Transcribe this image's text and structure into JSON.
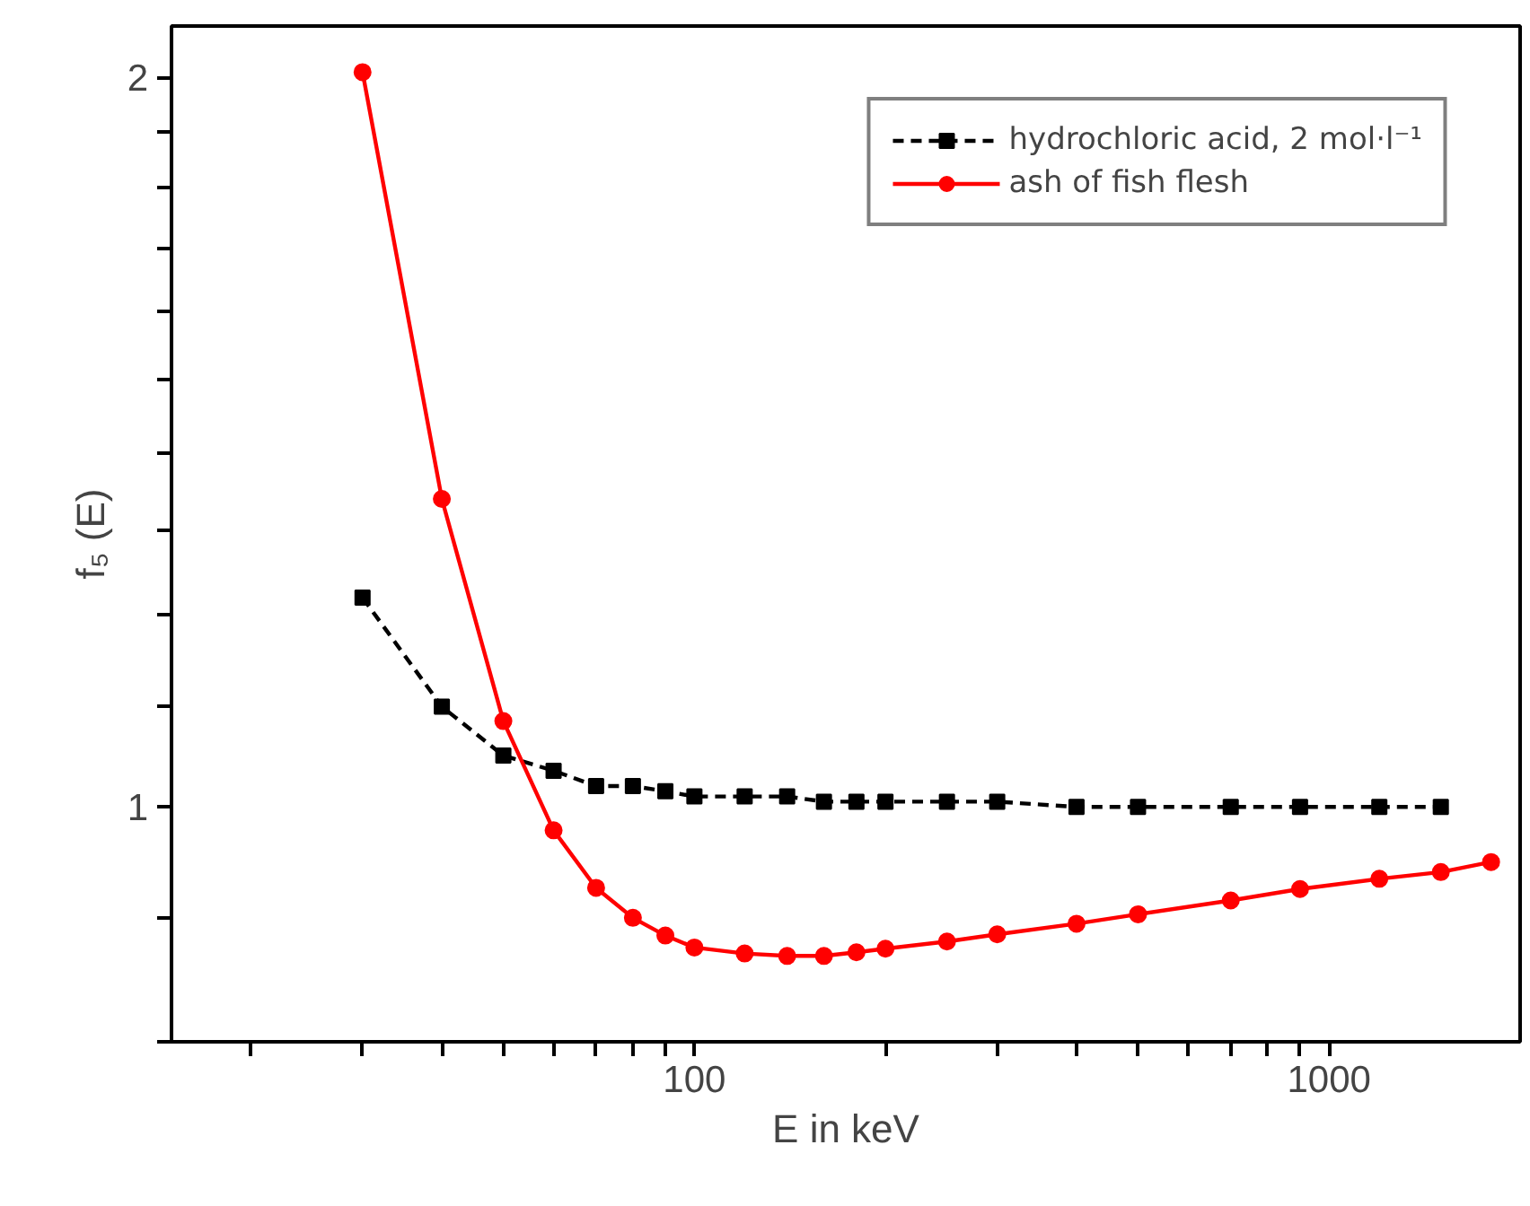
{
  "chart_data": {
    "type": "line",
    "xlabel": "E in keV",
    "ylabel": "f₅ (E)",
    "log": "xy",
    "xlim": [
      15,
      2000
    ],
    "ylim": [
      0.8,
      2.1
    ],
    "xticks": [
      {
        "value": 20,
        "label": null
      },
      {
        "value": 30,
        "label": null
      },
      {
        "value": 40,
        "label": null
      },
      {
        "value": 50,
        "label": null
      },
      {
        "value": 60,
        "label": null
      },
      {
        "value": 70,
        "label": null
      },
      {
        "value": 80,
        "label": null
      },
      {
        "value": 90,
        "label": null
      },
      100,
      {
        "value": 200,
        "label": null
      },
      {
        "value": 300,
        "label": null
      },
      {
        "value": 400,
        "label": null
      },
      {
        "value": 500,
        "label": null
      },
      {
        "value": 600,
        "label": null
      },
      {
        "value": 700,
        "label": null
      },
      {
        "value": 800,
        "label": null
      },
      {
        "value": 900,
        "label": null
      },
      1000
    ],
    "yticks": [
      {
        "value": 0.8,
        "label": null
      },
      {
        "value": 0.9,
        "label": null
      },
      1,
      {
        "value": 1.1,
        "label": null
      },
      {
        "value": 1.2,
        "label": null
      },
      {
        "value": 1.3,
        "label": null
      },
      {
        "value": 1.4,
        "label": null
      },
      {
        "value": 1.5,
        "label": null
      },
      {
        "value": 1.6,
        "label": null
      },
      {
        "value": 1.7,
        "label": null
      },
      {
        "value": 1.8,
        "label": null
      },
      {
        "value": 1.9,
        "label": null
      },
      2
    ],
    "grid": false,
    "legend": "top right",
    "series": [
      {
        "name": "hydrochloric acid, 2 mol·l⁻¹",
        "color": "#000000",
        "marker": "square",
        "line_style": "dashed",
        "x": [
          30,
          40,
          50,
          60,
          70,
          80,
          90,
          100,
          120,
          140,
          160,
          180,
          200,
          250,
          300,
          400,
          500,
          700,
          900,
          1200,
          1500
        ],
        "values": [
          1.22,
          1.1,
          1.05,
          1.035,
          1.02,
          1.02,
          1.015,
          1.01,
          1.01,
          1.01,
          1.005,
          1.005,
          1.005,
          1.005,
          1.005,
          1.0,
          1.0,
          1.0,
          1.0,
          1.0,
          1.0
        ]
      },
      {
        "name": "ash of fish flesh",
        "color": "#ff0000",
        "marker": "circle",
        "line_style": "solid",
        "x": [
          30,
          40,
          50,
          60,
          70,
          80,
          90,
          100,
          120,
          140,
          160,
          180,
          200,
          250,
          300,
          400,
          500,
          700,
          900,
          1200,
          1500,
          1800
        ],
        "values": [
          2.01,
          1.34,
          1.085,
          0.978,
          0.926,
          0.9,
          0.885,
          0.875,
          0.87,
          0.868,
          0.868,
          0.871,
          0.874,
          0.88,
          0.886,
          0.895,
          0.903,
          0.915,
          0.925,
          0.934,
          0.94,
          0.949
        ]
      }
    ]
  }
}
